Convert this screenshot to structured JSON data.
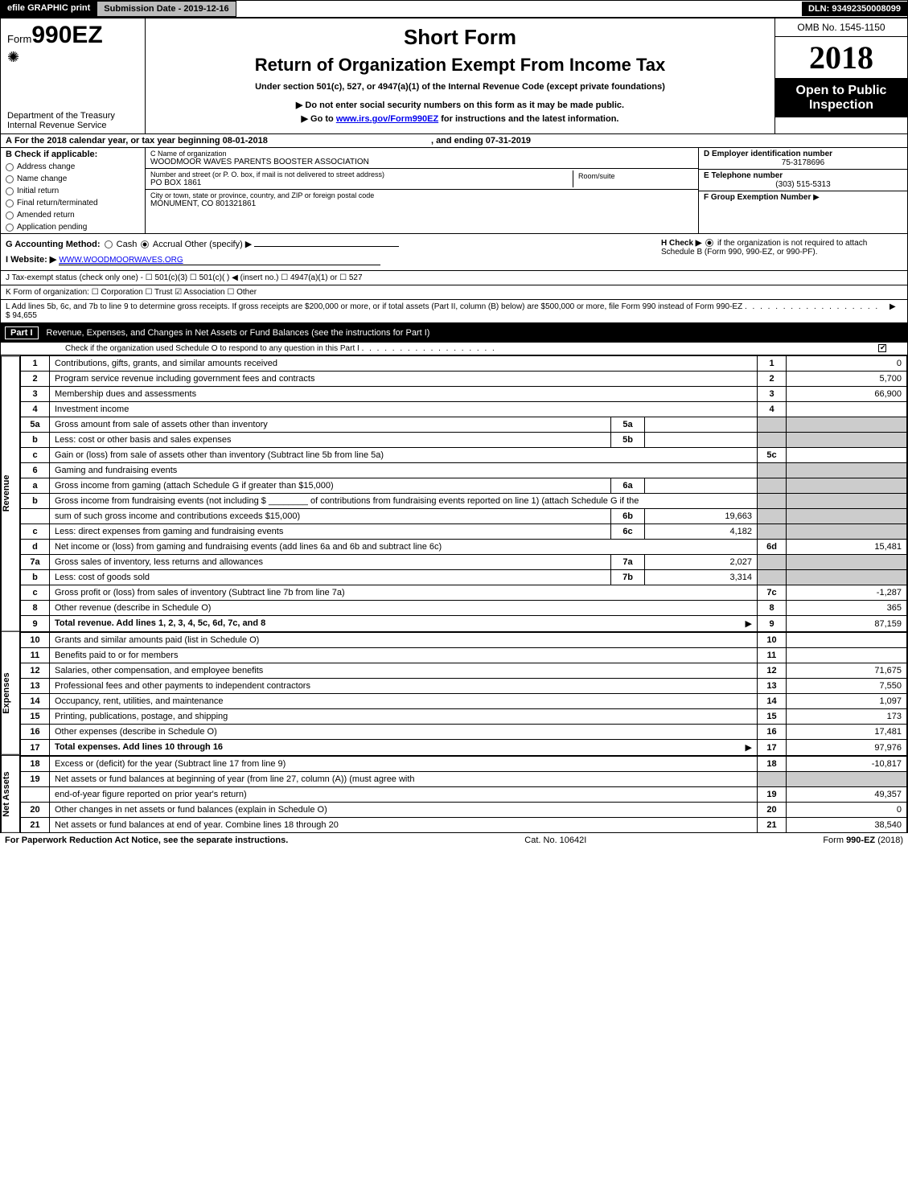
{
  "topbar": {
    "efile": "efile GRAPHIC print",
    "submission": "Submission Date - 2019-12-16",
    "dln": "DLN: 93492350008099"
  },
  "header": {
    "form_prefix": "Form",
    "form_number": "990EZ",
    "dept1": "Department of the Treasury",
    "dept2": "Internal Revenue Service",
    "short_form": "Short Form",
    "return_title": "Return of Organization Exempt From Income Tax",
    "subtitle": "Under section 501(c), 527, or 4947(a)(1) of the Internal Revenue Code (except private foundations)",
    "do_not_enter": "▶ Do not enter social security numbers on this form as it may be made public.",
    "goto": "▶ Go to ",
    "goto_link": "www.irs.gov/Form990EZ",
    "goto_suffix": " for instructions and the latest information.",
    "omb": "OMB No. 1545-1150",
    "year": "2018",
    "open_public": "Open to Public Inspection"
  },
  "line_a": {
    "prefix_bold": "A",
    "text": "  For the 2018 calendar year, or tax year beginning 08-01-2018",
    "ending": ", and ending 07-31-2019"
  },
  "box_b": {
    "label": "B",
    "check_if": "Check if applicable:",
    "items": [
      "Address change",
      "Name change",
      "Initial return",
      "Final return/terminated",
      "Amended return",
      "Application pending"
    ]
  },
  "box_c": {
    "c_label": "C Name of organization",
    "org_name": "WOODMOOR WAVES PARENTS BOOSTER ASSOCIATION",
    "street_label": "Number and street (or P. O. box, if mail is not delivered to street address)",
    "street": "PO BOX 1861",
    "room_label": "Room/suite",
    "city_label": "City or town, state or province, country, and ZIP or foreign postal code",
    "city": "MONUMENT, CO  801321861"
  },
  "box_d": {
    "d_label": "D Employer identification number",
    "ein": "75-3178696",
    "e_label": "E Telephone number",
    "phone": "(303) 515-5313",
    "f_label": "F Group Exemption Number",
    "f_arrow": "▶"
  },
  "gh": {
    "g_prefix": "G Accounting Method:",
    "cash": "Cash",
    "accrual": "Accrual",
    "other": "Other (specify) ▶",
    "h_text": "H   Check ▶",
    "h_rest": "if the organization is not required to attach Schedule B (Form 990, 990-EZ, or 990-PF).",
    "i_label": "I Website: ▶",
    "website": "WWW.WOODMOORWAVES.ORG"
  },
  "j_line": "J Tax-exempt status (check only one) -   ☐ 501(c)(3)  ☐ 501(c)(  ) ◀ (insert no.)  ☐ 4947(a)(1) or  ☐ 527",
  "k_line": "K Form of organization:    ☐ Corporation    ☐ Trust    ☑ Association    ☐ Other",
  "l_line": {
    "text": "L Add lines 5b, 6c, and 7b to line 9 to determine gross receipts. If gross receipts are $200,000 or more, or if total assets (Part II, column (B) below) are $500,000 or more, file Form 990 instead of Form 990-EZ",
    "amount": "▶ $ 94,655"
  },
  "part1": {
    "label": "Part I",
    "title": "Revenue, Expenses, and Changes in Net Assets or Fund Balances (see the instructions for Part I)",
    "check_line": "Check if the organization used Schedule O to respond to any question in this Part I"
  },
  "sections": {
    "revenue": "Revenue",
    "expenses": "Expenses",
    "netassets": "Net Assets"
  },
  "rows": [
    {
      "n": "1",
      "desc": "Contributions, gifts, grants, and similar amounts received",
      "ln": "1",
      "val": "0"
    },
    {
      "n": "2",
      "desc": "Program service revenue including government fees and contracts",
      "ln": "2",
      "val": "5,700"
    },
    {
      "n": "3",
      "desc": "Membership dues and assessments",
      "ln": "3",
      "val": "66,900"
    },
    {
      "n": "4",
      "desc": "Investment income",
      "ln": "4",
      "val": ""
    },
    {
      "n": "5a",
      "desc": "Gross amount from sale of assets other than inventory",
      "sub": "5a",
      "subval": ""
    },
    {
      "n": "b",
      "desc": "Less: cost or other basis and sales expenses",
      "sub": "5b",
      "subval": ""
    },
    {
      "n": "c",
      "desc": "Gain or (loss) from sale of assets other than inventory (Subtract line 5b from line 5a)",
      "ln": "5c",
      "val": ""
    },
    {
      "n": "6",
      "desc": "Gaming and fundraising events"
    },
    {
      "n": "a",
      "desc": "Gross income from gaming (attach Schedule G if greater than $15,000)",
      "sub": "6a",
      "subval": ""
    },
    {
      "n": "b",
      "desc": "Gross income from fundraising events (not including $ ________ of contributions from fundraising events reported on line 1) (attach Schedule G if the"
    },
    {
      "n": "",
      "desc": "sum of such gross income and contributions exceeds $15,000)",
      "sub": "6b",
      "subval": "19,663"
    },
    {
      "n": "c",
      "desc": "Less: direct expenses from gaming and fundraising events",
      "sub": "6c",
      "subval": "4,182"
    },
    {
      "n": "d",
      "desc": "Net income or (loss) from gaming and fundraising events (add lines 6a and 6b and subtract line 6c)",
      "ln": "6d",
      "val": "15,481"
    },
    {
      "n": "7a",
      "desc": "Gross sales of inventory, less returns and allowances",
      "sub": "7a",
      "subval": "2,027"
    },
    {
      "n": "b",
      "desc": "Less: cost of goods sold",
      "sub": "7b",
      "subval": "3,314"
    },
    {
      "n": "c",
      "desc": "Gross profit or (loss) from sales of inventory (Subtract line 7b from line 7a)",
      "ln": "7c",
      "val": "-1,287"
    },
    {
      "n": "8",
      "desc": "Other revenue (describe in Schedule O)",
      "ln": "8",
      "val": "365"
    },
    {
      "n": "9",
      "desc": "Total revenue. Add lines 1, 2, 3, 4, 5c, 6d, 7c, and 8",
      "ln": "9",
      "val": "87,159",
      "bold": true,
      "arrow": true
    }
  ],
  "expense_rows": [
    {
      "n": "10",
      "desc": "Grants and similar amounts paid (list in Schedule O)",
      "ln": "10",
      "val": ""
    },
    {
      "n": "11",
      "desc": "Benefits paid to or for members",
      "ln": "11",
      "val": ""
    },
    {
      "n": "12",
      "desc": "Salaries, other compensation, and employee benefits",
      "ln": "12",
      "val": "71,675"
    },
    {
      "n": "13",
      "desc": "Professional fees and other payments to independent contractors",
      "ln": "13",
      "val": "7,550"
    },
    {
      "n": "14",
      "desc": "Occupancy, rent, utilities, and maintenance",
      "ln": "14",
      "val": "1,097"
    },
    {
      "n": "15",
      "desc": "Printing, publications, postage, and shipping",
      "ln": "15",
      "val": "173"
    },
    {
      "n": "16",
      "desc": "Other expenses (describe in Schedule O)",
      "ln": "16",
      "val": "17,481"
    },
    {
      "n": "17",
      "desc": "Total expenses. Add lines 10 through 16",
      "ln": "17",
      "val": "97,976",
      "bold": true,
      "arrow": true
    }
  ],
  "netasset_rows": [
    {
      "n": "18",
      "desc": "Excess or (deficit) for the year (Subtract line 17 from line 9)",
      "ln": "18",
      "val": "-10,817"
    },
    {
      "n": "19",
      "desc": "Net assets or fund balances at beginning of year (from line 27, column (A)) (must agree with"
    },
    {
      "n": "",
      "desc": "end-of-year figure reported on prior year's return)",
      "ln": "19",
      "val": "49,357"
    },
    {
      "n": "20",
      "desc": "Other changes in net assets or fund balances (explain in Schedule O)",
      "ln": "20",
      "val": "0"
    },
    {
      "n": "21",
      "desc": "Net assets or fund balances at end of year. Combine lines 18 through 20",
      "ln": "21",
      "val": "38,540"
    }
  ],
  "footer": {
    "left": "For Paperwork Reduction Act Notice, see the separate instructions.",
    "center": "Cat. No. 10642I",
    "right": "Form 990-EZ (2018)"
  },
  "colors": {
    "black": "#000000",
    "white": "#ffffff",
    "gray_btn": "#bbbbbb",
    "shaded_cell": "#cccccc",
    "link": "#0000ee"
  }
}
